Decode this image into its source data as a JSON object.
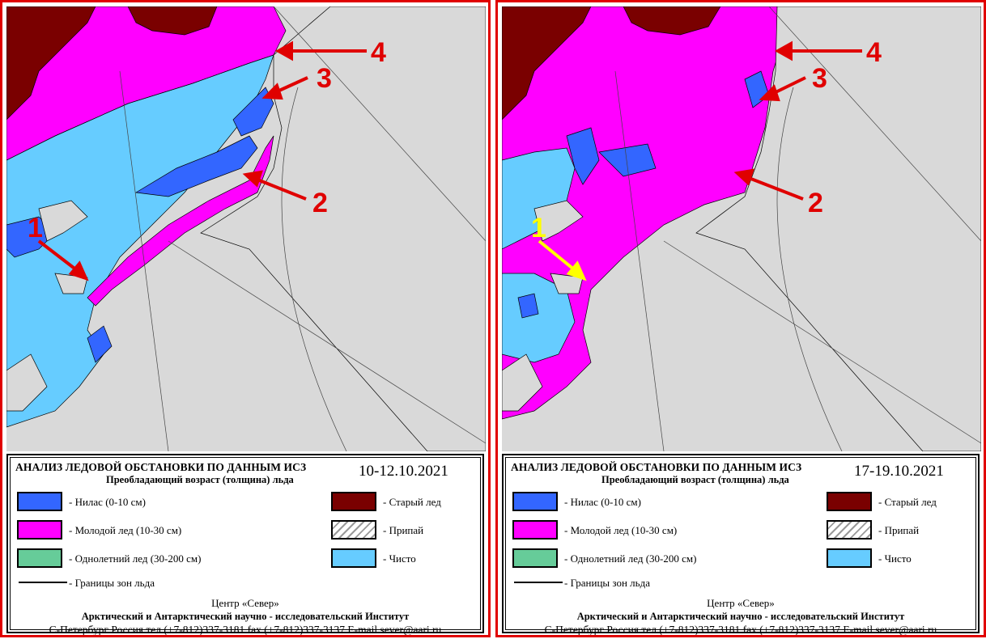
{
  "colors": {
    "nilas": "#3366ff",
    "young_ice": "#ff00ff",
    "first_year_ice": "#66cc99",
    "old_ice": "#7a0000",
    "fast_ice": "hatched",
    "open_water": "#66ccff",
    "land": "#d9d9d9",
    "arrow_red": "#e00000",
    "arrow_yellow": "#ffff00",
    "frame": "#e00000"
  },
  "legend_items": {
    "nilas": "- Нилас (0-10 см)",
    "young_ice": "- Молодой лед (10-30 см)",
    "first_year_ice": "- Однолетний лед (30-200 см)",
    "boundaries": "- Границы зон льда",
    "old_ice": "- Старый лед",
    "fast_ice": "- Припай",
    "open_water": "- Чисто"
  },
  "footer": {
    "center": "Центр «Север»",
    "institute": "Арктический и Антарктический научно - исследовательский Институт",
    "contacts": "С-Петербург Россия тел.(+7-812)337-3181 fax (+7-812)337-3137 E-mail sever@aari.ru"
  },
  "panels": [
    {
      "title": "АНАЛИЗ ЛЕДОВОЙ ОБСТАНОВКИ ПО ДАННЫМ ИСЗ",
      "subtitle": "Преобладающий возраст (толщина) льда",
      "date": "10-12.10.2021",
      "markers": [
        "1",
        "2",
        "3",
        "4"
      ]
    },
    {
      "title": "АНАЛИЗ ЛЕДОВОЙ ОБСТАНОВКИ ПО ДАННЫМ ИСЗ",
      "subtitle": "Преобладающий возраст (толщина) льда",
      "date": "17-19.10.2021",
      "markers": [
        "1",
        "2",
        "3",
        "4"
      ]
    }
  ]
}
